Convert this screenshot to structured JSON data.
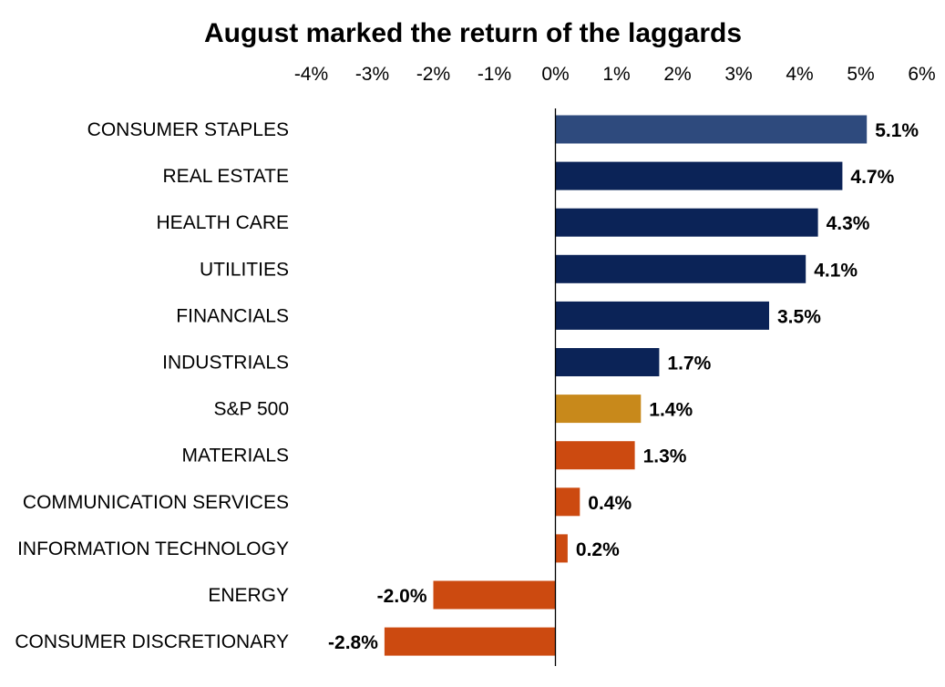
{
  "chart_data": {
    "type": "bar",
    "orientation": "horizontal",
    "title": "August marked the return of the laggards",
    "xlabel": "",
    "ylabel": "",
    "xlim": [
      -4,
      6
    ],
    "x_ticks": [
      -4,
      -3,
      -2,
      -1,
      0,
      1,
      2,
      3,
      4,
      5,
      6
    ],
    "x_tick_labels": [
      "-4%",
      "-3%",
      "-2%",
      "-1%",
      "0%",
      "1%",
      "2%",
      "3%",
      "4%",
      "5%",
      "6%"
    ],
    "axis_position": "top",
    "grid": false,
    "legend": "none",
    "categories": [
      "CONSUMER STAPLES",
      "REAL ESTATE",
      "HEALTH CARE",
      "UTILITIES",
      "FINANCIALS",
      "INDUSTRIALS",
      "S&P 500",
      "MATERIALS",
      "COMMUNICATION SERVICES",
      "INFORMATION TECHNOLOGY",
      "ENERGY",
      "CONSUMER DISCRETIONARY"
    ],
    "values": [
      5.1,
      4.7,
      4.3,
      4.1,
      3.5,
      1.7,
      1.4,
      1.3,
      0.4,
      0.2,
      -2.0,
      -2.8
    ],
    "value_labels": [
      "5.1%",
      "4.7%",
      "4.3%",
      "4.1%",
      "3.5%",
      "1.7%",
      "1.4%",
      "1.3%",
      "0.4%",
      "0.2%",
      "-2.0%",
      "-2.8%"
    ],
    "colors": [
      "#2E4A7D",
      "#0B2357",
      "#0B2357",
      "#0B2357",
      "#0B2357",
      "#0B2357",
      "#C8891B",
      "#CC4A10",
      "#CC4A10",
      "#CC4A10",
      "#CC4A10",
      "#CC4A10"
    ],
    "axis_color": "#000000"
  }
}
